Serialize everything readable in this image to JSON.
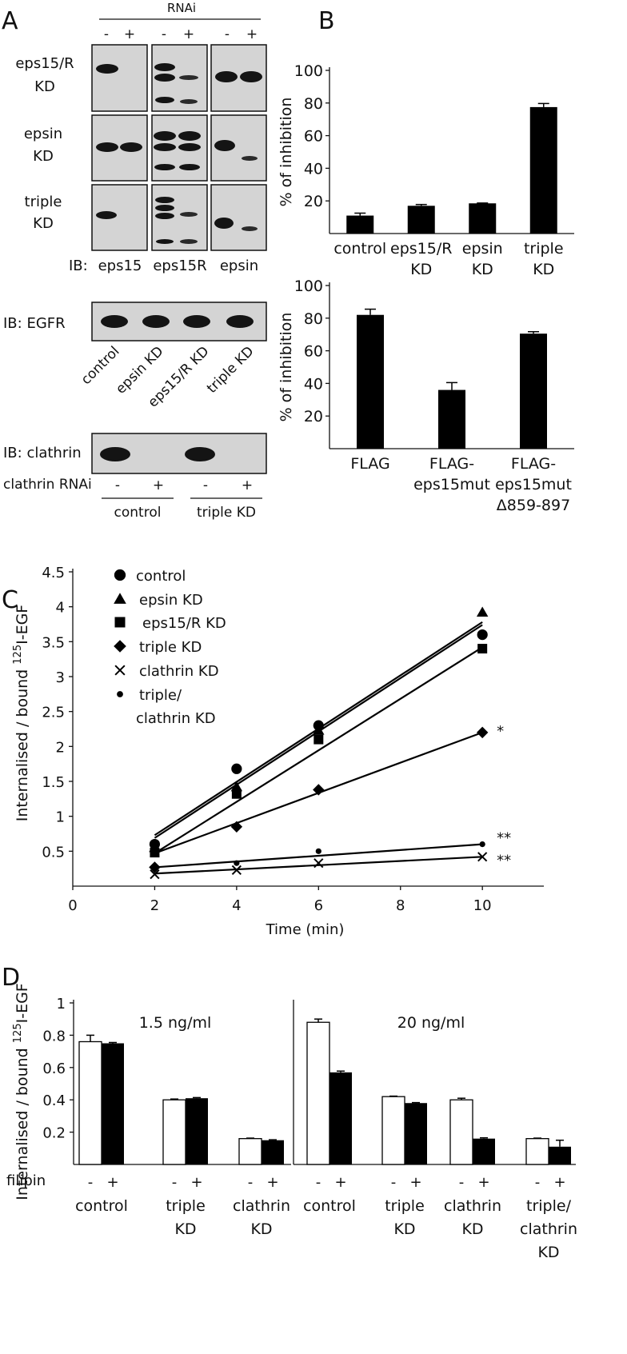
{
  "panels": {
    "A": "A",
    "B": "B",
    "C": "C",
    "D": "D"
  },
  "panelA": {
    "rnai_label": "RNAi",
    "minus": "-",
    "plus": "+",
    "row_labels": [
      [
        "eps15/R",
        "KD"
      ],
      [
        "epsin",
        "KD"
      ],
      [
        "triple",
        "KD"
      ]
    ],
    "ib_prefix": "IB:",
    "ib_cols": [
      "eps15",
      "eps15R",
      "epsin"
    ],
    "egfr_label": "IB:  EGFR",
    "egfr_lanes": [
      "control",
      "epsin KD",
      "eps15/R KD",
      "triple KD"
    ],
    "clathrin_label": "IB:  clathrin",
    "clathrin_rnai_label": "clathrin RNAi",
    "clathrin_groups": [
      "control",
      "triple KD"
    ]
  },
  "chart_data": [
    {
      "type": "bar",
      "id": "B-top",
      "ylabel": "% of inhibition",
      "ylim": [
        0,
        100
      ],
      "yticks": [
        20,
        40,
        60,
        80,
        100
      ],
      "categories": [
        [
          "control"
        ],
        [
          "eps15/R",
          "KD"
        ],
        [
          "epsin",
          "KD"
        ],
        [
          "triple",
          "KD"
        ]
      ],
      "values": [
        11,
        17,
        18.5,
        77.5
      ],
      "errors": [
        1.5,
        0.8,
        0.2,
        2.2
      ]
    },
    {
      "type": "bar",
      "id": "B-bottom",
      "ylabel": "% of inhibition",
      "ylim": [
        0,
        100
      ],
      "yticks": [
        20,
        40,
        60,
        80,
        100
      ],
      "categories": [
        [
          "FLAG"
        ],
        [
          "FLAG-",
          "eps15mut"
        ],
        [
          "FLAG-",
          "eps15mut",
          "Δ859-897"
        ]
      ],
      "values": [
        82,
        36,
        70.5
      ],
      "errors": [
        3.5,
        4.5,
        1.2
      ]
    },
    {
      "type": "scatter",
      "id": "C",
      "xlabel": "Time (min)",
      "ylabel": "Internalised / bound ",
      "ylabel_sup": "125",
      "ylabel_suffix": "I-EGF",
      "xlim": [
        0,
        11.5
      ],
      "ylim": [
        0,
        4.5
      ],
      "xticks": [
        0,
        2,
        4,
        6,
        8,
        10
      ],
      "yticks": [
        0.5,
        1,
        1.5,
        2,
        2.5,
        3,
        3.5,
        4,
        4.5
      ],
      "x": [
        2,
        4,
        6,
        10
      ],
      "series": [
        {
          "name": "control",
          "marker": "circle",
          "values": [
            0.6,
            1.68,
            2.3,
            3.6
          ],
          "fit": [
            0.73,
            3.78
          ]
        },
        {
          "name": "epsin KD",
          "marker": "triangle",
          "values": [
            0.55,
            1.42,
            2.23,
            3.92
          ],
          "fit": [
            0.69,
            3.74
          ]
        },
        {
          "name": "eps15/R KD",
          "marker": "square",
          "values": [
            0.48,
            1.32,
            2.1,
            3.4
          ],
          "fit": [
            0.47,
            3.42
          ]
        },
        {
          "name": "triple KD",
          "marker": "diamond",
          "values": [
            0.27,
            0.85,
            1.38,
            2.2
          ],
          "fit": [
            0.47,
            2.2
          ],
          "annot": "*"
        },
        {
          "name": "clathrin KD",
          "marker": "x",
          "values": [
            0.17,
            0.23,
            0.33,
            0.42
          ],
          "fit": [
            0.18,
            0.42
          ],
          "annot": "**"
        },
        {
          "name": "triple/\nclathrin KD",
          "marker": "dot",
          "values": [
            0.27,
            0.33,
            0.5,
            0.6
          ],
          "fit": [
            0.27,
            0.6
          ],
          "annot": "**"
        }
      ],
      "legend_labels": [
        "control",
        "epsin KD",
        "eps15/R KD",
        "triple KD",
        "clathrin KD",
        "triple/",
        "clathrin KD"
      ]
    },
    {
      "type": "bar",
      "id": "D",
      "ylabel": "Internalised / bound ",
      "ylabel_sup": "125",
      "ylabel_suffix": "I-EGF",
      "ylim": [
        0,
        1
      ],
      "yticks": [
        0.2,
        0.4,
        0.6,
        0.8,
        1
      ],
      "treatment_label": "filipin",
      "subplots": [
        {
          "title": "1.5 ng/ml",
          "categories": [
            [
              "control"
            ],
            [
              "triple",
              "KD"
            ],
            [
              "clathrin",
              "KD"
            ]
          ],
          "series": [
            {
              "name": "-",
              "values": [
                0.76,
                0.4,
                0.16
              ],
              "errors": [
                0.04,
                0.005,
                0.003
              ]
            },
            {
              "name": "+",
              "values": [
                0.75,
                0.41,
                0.15
              ],
              "errors": [
                0.005,
                0.004,
                0.003
              ]
            }
          ]
        },
        {
          "title": "20 ng/ml",
          "categories": [
            [
              "control"
            ],
            [
              "triple",
              "KD"
            ],
            [
              "clathrin",
              "KD"
            ],
            [
              "triple/",
              "clathrin",
              "KD"
            ]
          ],
          "series": [
            {
              "name": "-",
              "values": [
                0.88,
                0.42,
                0.4,
                0.16
              ],
              "errors": [
                0.02,
                0.003,
                0.01,
                0.003
              ]
            },
            {
              "name": "+",
              "values": [
                0.57,
                0.38,
                0.16,
                0.11
              ],
              "errors": [
                0.008,
                0.003,
                0.005,
                0.04
              ]
            }
          ]
        }
      ]
    }
  ]
}
